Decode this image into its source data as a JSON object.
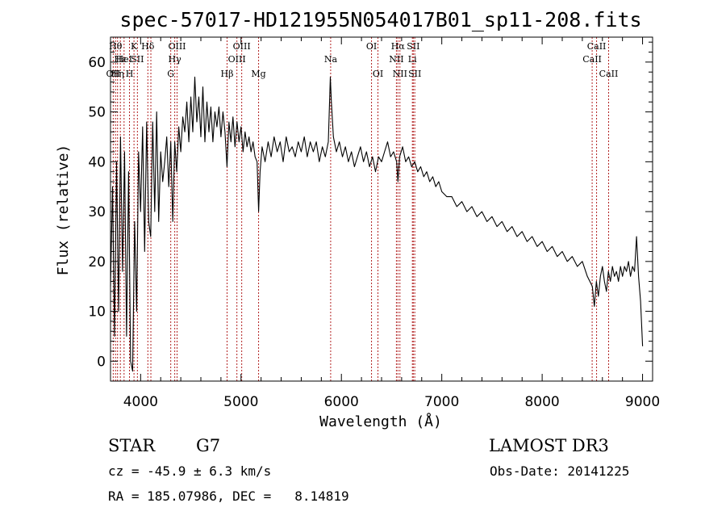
{
  "chart_data": {
    "type": "line",
    "title": "spec-57017-HD121955N054017B01_sp11-208.fits",
    "xlabel": "Wavelength (Å)",
    "ylabel": "Flux (relative)",
    "xlim": [
      3700,
      9100
    ],
    "ylim": [
      -4,
      65
    ],
    "xticks": [
      4000,
      5000,
      6000,
      7000,
      8000,
      9000
    ],
    "yticks": [
      0,
      10,
      20,
      30,
      40,
      50,
      60
    ],
    "grid": false,
    "series": [
      {
        "values": [
          [
            3700,
            15
          ],
          [
            3720,
            35
          ],
          [
            3740,
            5
          ],
          [
            3760,
            40
          ],
          [
            3780,
            10
          ],
          [
            3800,
            45
          ],
          [
            3820,
            18
          ],
          [
            3840,
            42
          ],
          [
            3860,
            5
          ],
          [
            3880,
            38
          ],
          [
            3900,
            0
          ],
          [
            3920,
            -2
          ],
          [
            3940,
            28
          ],
          [
            3960,
            10
          ],
          [
            3980,
            42
          ],
          [
            4000,
            30
          ],
          [
            4020,
            47
          ],
          [
            4040,
            22
          ],
          [
            4060,
            48
          ],
          [
            4080,
            28
          ],
          [
            4100,
            25
          ],
          [
            4120,
            48
          ],
          [
            4140,
            30
          ],
          [
            4160,
            50
          ],
          [
            4180,
            28
          ],
          [
            4200,
            42
          ],
          [
            4220,
            36
          ],
          [
            4240,
            40
          ],
          [
            4260,
            45
          ],
          [
            4280,
            35
          ],
          [
            4300,
            44
          ],
          [
            4320,
            28
          ],
          [
            4340,
            44
          ],
          [
            4360,
            38
          ],
          [
            4380,
            47
          ],
          [
            4400,
            42
          ],
          [
            4420,
            49
          ],
          [
            4440,
            46
          ],
          [
            4460,
            52
          ],
          [
            4480,
            44
          ],
          [
            4500,
            53
          ],
          [
            4520,
            46
          ],
          [
            4540,
            57
          ],
          [
            4560,
            48
          ],
          [
            4580,
            53
          ],
          [
            4600,
            45
          ],
          [
            4620,
            55
          ],
          [
            4640,
            44
          ],
          [
            4660,
            52
          ],
          [
            4680,
            46
          ],
          [
            4700,
            51
          ],
          [
            4720,
            44
          ],
          [
            4740,
            50
          ],
          [
            4760,
            47
          ],
          [
            4780,
            51
          ],
          [
            4800,
            45
          ],
          [
            4820,
            50
          ],
          [
            4840,
            46
          ],
          [
            4860,
            39
          ],
          [
            4880,
            48
          ],
          [
            4900,
            44
          ],
          [
            4920,
            49
          ],
          [
            4940,
            43
          ],
          [
            4960,
            48
          ],
          [
            4980,
            44
          ],
          [
            5000,
            47
          ],
          [
            5020,
            42
          ],
          [
            5040,
            46
          ],
          [
            5060,
            43
          ],
          [
            5080,
            45
          ],
          [
            5100,
            42
          ],
          [
            5120,
            44
          ],
          [
            5140,
            41
          ],
          [
            5160,
            40
          ],
          [
            5175,
            30
          ],
          [
            5190,
            38
          ],
          [
            5210,
            43
          ],
          [
            5240,
            40
          ],
          [
            5270,
            44
          ],
          [
            5300,
            41
          ],
          [
            5330,
            45
          ],
          [
            5360,
            42
          ],
          [
            5390,
            44
          ],
          [
            5420,
            40
          ],
          [
            5450,
            45
          ],
          [
            5480,
            42
          ],
          [
            5510,
            43
          ],
          [
            5540,
            41
          ],
          [
            5570,
            44
          ],
          [
            5600,
            42
          ],
          [
            5630,
            45
          ],
          [
            5660,
            41
          ],
          [
            5690,
            44
          ],
          [
            5720,
            42
          ],
          [
            5750,
            44
          ],
          [
            5780,
            40
          ],
          [
            5810,
            43
          ],
          [
            5840,
            41
          ],
          [
            5870,
            44
          ],
          [
            5890,
            57
          ],
          [
            5900,
            52
          ],
          [
            5920,
            45
          ],
          [
            5950,
            42
          ],
          [
            5980,
            44
          ],
          [
            6010,
            41
          ],
          [
            6040,
            43
          ],
          [
            6070,
            40
          ],
          [
            6100,
            42
          ],
          [
            6130,
            39
          ],
          [
            6160,
            41
          ],
          [
            6190,
            43
          ],
          [
            6220,
            40
          ],
          [
            6250,
            42
          ],
          [
            6280,
            39
          ],
          [
            6310,
            41
          ],
          [
            6340,
            38
          ],
          [
            6370,
            41
          ],
          [
            6400,
            40
          ],
          [
            6430,
            42
          ],
          [
            6460,
            44
          ],
          [
            6490,
            41
          ],
          [
            6520,
            42
          ],
          [
            6550,
            40
          ],
          [
            6563,
            36
          ],
          [
            6580,
            41
          ],
          [
            6610,
            43
          ],
          [
            6640,
            40
          ],
          [
            6670,
            41
          ],
          [
            6700,
            39
          ],
          [
            6730,
            40
          ],
          [
            6760,
            38
          ],
          [
            6790,
            39
          ],
          [
            6820,
            37
          ],
          [
            6850,
            38
          ],
          [
            6880,
            36
          ],
          [
            6910,
            37
          ],
          [
            6940,
            35
          ],
          [
            6970,
            36
          ],
          [
            7000,
            34
          ],
          [
            7050,
            33
          ],
          [
            7100,
            33
          ],
          [
            7150,
            31
          ],
          [
            7200,
            32
          ],
          [
            7250,
            30
          ],
          [
            7300,
            31
          ],
          [
            7350,
            29
          ],
          [
            7400,
            30
          ],
          [
            7450,
            28
          ],
          [
            7500,
            29
          ],
          [
            7550,
            27
          ],
          [
            7600,
            28
          ],
          [
            7650,
            26
          ],
          [
            7700,
            27
          ],
          [
            7750,
            25
          ],
          [
            7800,
            26
          ],
          [
            7850,
            24
          ],
          [
            7900,
            25
          ],
          [
            7950,
            23
          ],
          [
            8000,
            24
          ],
          [
            8050,
            22
          ],
          [
            8100,
            23
          ],
          [
            8150,
            21
          ],
          [
            8200,
            22
          ],
          [
            8250,
            20
          ],
          [
            8300,
            21
          ],
          [
            8350,
            19
          ],
          [
            8400,
            20
          ],
          [
            8450,
            17
          ],
          [
            8500,
            15
          ],
          [
            8520,
            11
          ],
          [
            8540,
            16
          ],
          [
            8560,
            13
          ],
          [
            8580,
            17
          ],
          [
            8600,
            19
          ],
          [
            8620,
            16
          ],
          [
            8640,
            14
          ],
          [
            8660,
            18
          ],
          [
            8680,
            16
          ],
          [
            8700,
            19
          ],
          [
            8720,
            17
          ],
          [
            8740,
            18
          ],
          [
            8760,
            16
          ],
          [
            8780,
            19
          ],
          [
            8800,
            17
          ],
          [
            8820,
            19
          ],
          [
            8840,
            18
          ],
          [
            8860,
            20
          ],
          [
            8880,
            17
          ],
          [
            8900,
            19
          ],
          [
            8920,
            18
          ],
          [
            8940,
            25
          ],
          [
            8960,
            17
          ],
          [
            8980,
            12
          ],
          [
            9000,
            3
          ]
        ]
      }
    ],
    "lines": [
      {
        "wave": 3727,
        "label": "OII",
        "row": 3
      },
      {
        "wave": 3750,
        "label": "Hθ",
        "row": 1
      },
      {
        "wave": 3770,
        "label": "Hη",
        "row": 3
      },
      {
        "wave": 3798,
        "label": "Hε",
        "row": 2
      },
      {
        "wave": 3835,
        "label": "HeI",
        "row": 2
      },
      {
        "wave": 3889,
        "label": "H",
        "row": 3
      },
      {
        "wave": 3934,
        "label": "K",
        "row": 1
      },
      {
        "wave": 3968,
        "label": "SII",
        "row": 2
      },
      {
        "wave": 4072,
        "label": "Hδ",
        "row": 1
      },
      {
        "wave": 4102,
        "label": "",
        "row": 0
      },
      {
        "wave": 4300,
        "label": "G",
        "row": 3
      },
      {
        "wave": 4340,
        "label": "Hγ",
        "row": 2
      },
      {
        "wave": 4363,
        "label": "OIII",
        "row": 1
      },
      {
        "wave": 4861,
        "label": "Hβ",
        "row": 3
      },
      {
        "wave": 4959,
        "label": "OIII",
        "row": 2
      },
      {
        "wave": 5007,
        "label": "OIII",
        "row": 1
      },
      {
        "wave": 5175,
        "label": "Mg",
        "row": 3
      },
      {
        "wave": 5893,
        "label": "Na",
        "row": 2
      },
      {
        "wave": 6300,
        "label": "OI",
        "row": 1
      },
      {
        "wave": 6364,
        "label": "OI",
        "row": 3
      },
      {
        "wave": 6548,
        "label": "NII",
        "row": 2
      },
      {
        "wave": 6563,
        "label": "Hα",
        "row": 1
      },
      {
        "wave": 6583,
        "label": "NII",
        "row": 3
      },
      {
        "wave": 6707,
        "label": "Li",
        "row": 2
      },
      {
        "wave": 6716,
        "label": "SII",
        "row": 1
      },
      {
        "wave": 6731,
        "label": "SII",
        "row": 3
      },
      {
        "wave": 8498,
        "label": "CaII",
        "row": 2
      },
      {
        "wave": 8542,
        "label": "CaII",
        "row": 1
      },
      {
        "wave": 8662,
        "label": "CaII",
        "row": 3
      }
    ]
  },
  "info": {
    "class": "STAR",
    "subclass": "G7",
    "survey": "LAMOST DR3",
    "cz": "cz = -45.9 ± 6.3 km/s",
    "obs_date": "Obs-Date: 20141225",
    "coords": "RA = 185.07986, DEC =   8.14819"
  }
}
